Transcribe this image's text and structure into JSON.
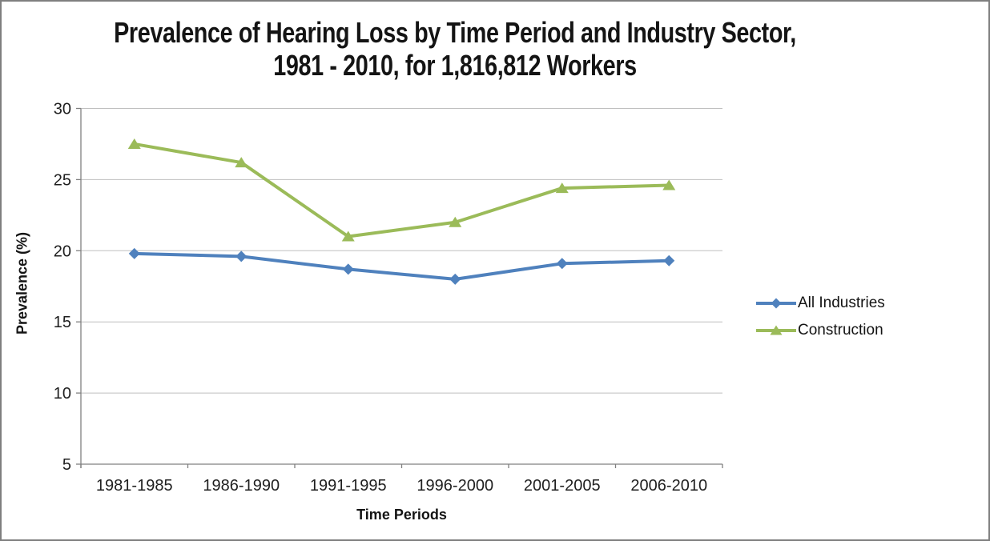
{
  "window": {
    "background": "#ffffff",
    "border_color": "#7f7f7f"
  },
  "chart_data": {
    "type": "line",
    "title": "Prevalence of Hearing Loss by Time Period and Industry Sector, 1981 - 2010, for 1,816,812 Workers",
    "title_lines": [
      "Prevalence of Hearing Loss by Time Period and Industry Sector,",
      "1981 - 2010, for 1,816,812 Workers"
    ],
    "xlabel": "Time Periods",
    "ylabel": "Prevalence (%)",
    "categories": [
      "1981-1985",
      "1986-1990",
      "1991-1995",
      "1996-2000",
      "2001-2005",
      "2006-2010"
    ],
    "series": [
      {
        "name": "All Industries",
        "marker": "diamond",
        "color": "#4F81BD",
        "values": [
          19.8,
          19.6,
          18.7,
          18.0,
          19.1,
          19.3
        ]
      },
      {
        "name": "Construction",
        "marker": "triangle",
        "color": "#9BBB59",
        "values": [
          27.5,
          26.2,
          21.0,
          22.0,
          24.4,
          24.6
        ]
      }
    ],
    "ylim": [
      5,
      30
    ],
    "yticks": [
      5,
      10,
      15,
      20,
      25,
      30
    ],
    "grid": true,
    "legend_position": "right",
    "gridline_color": "#BFBFBF",
    "axis_color": "#808080",
    "tick_label_color": "#1f1f1f",
    "tick_label_size": 20
  }
}
